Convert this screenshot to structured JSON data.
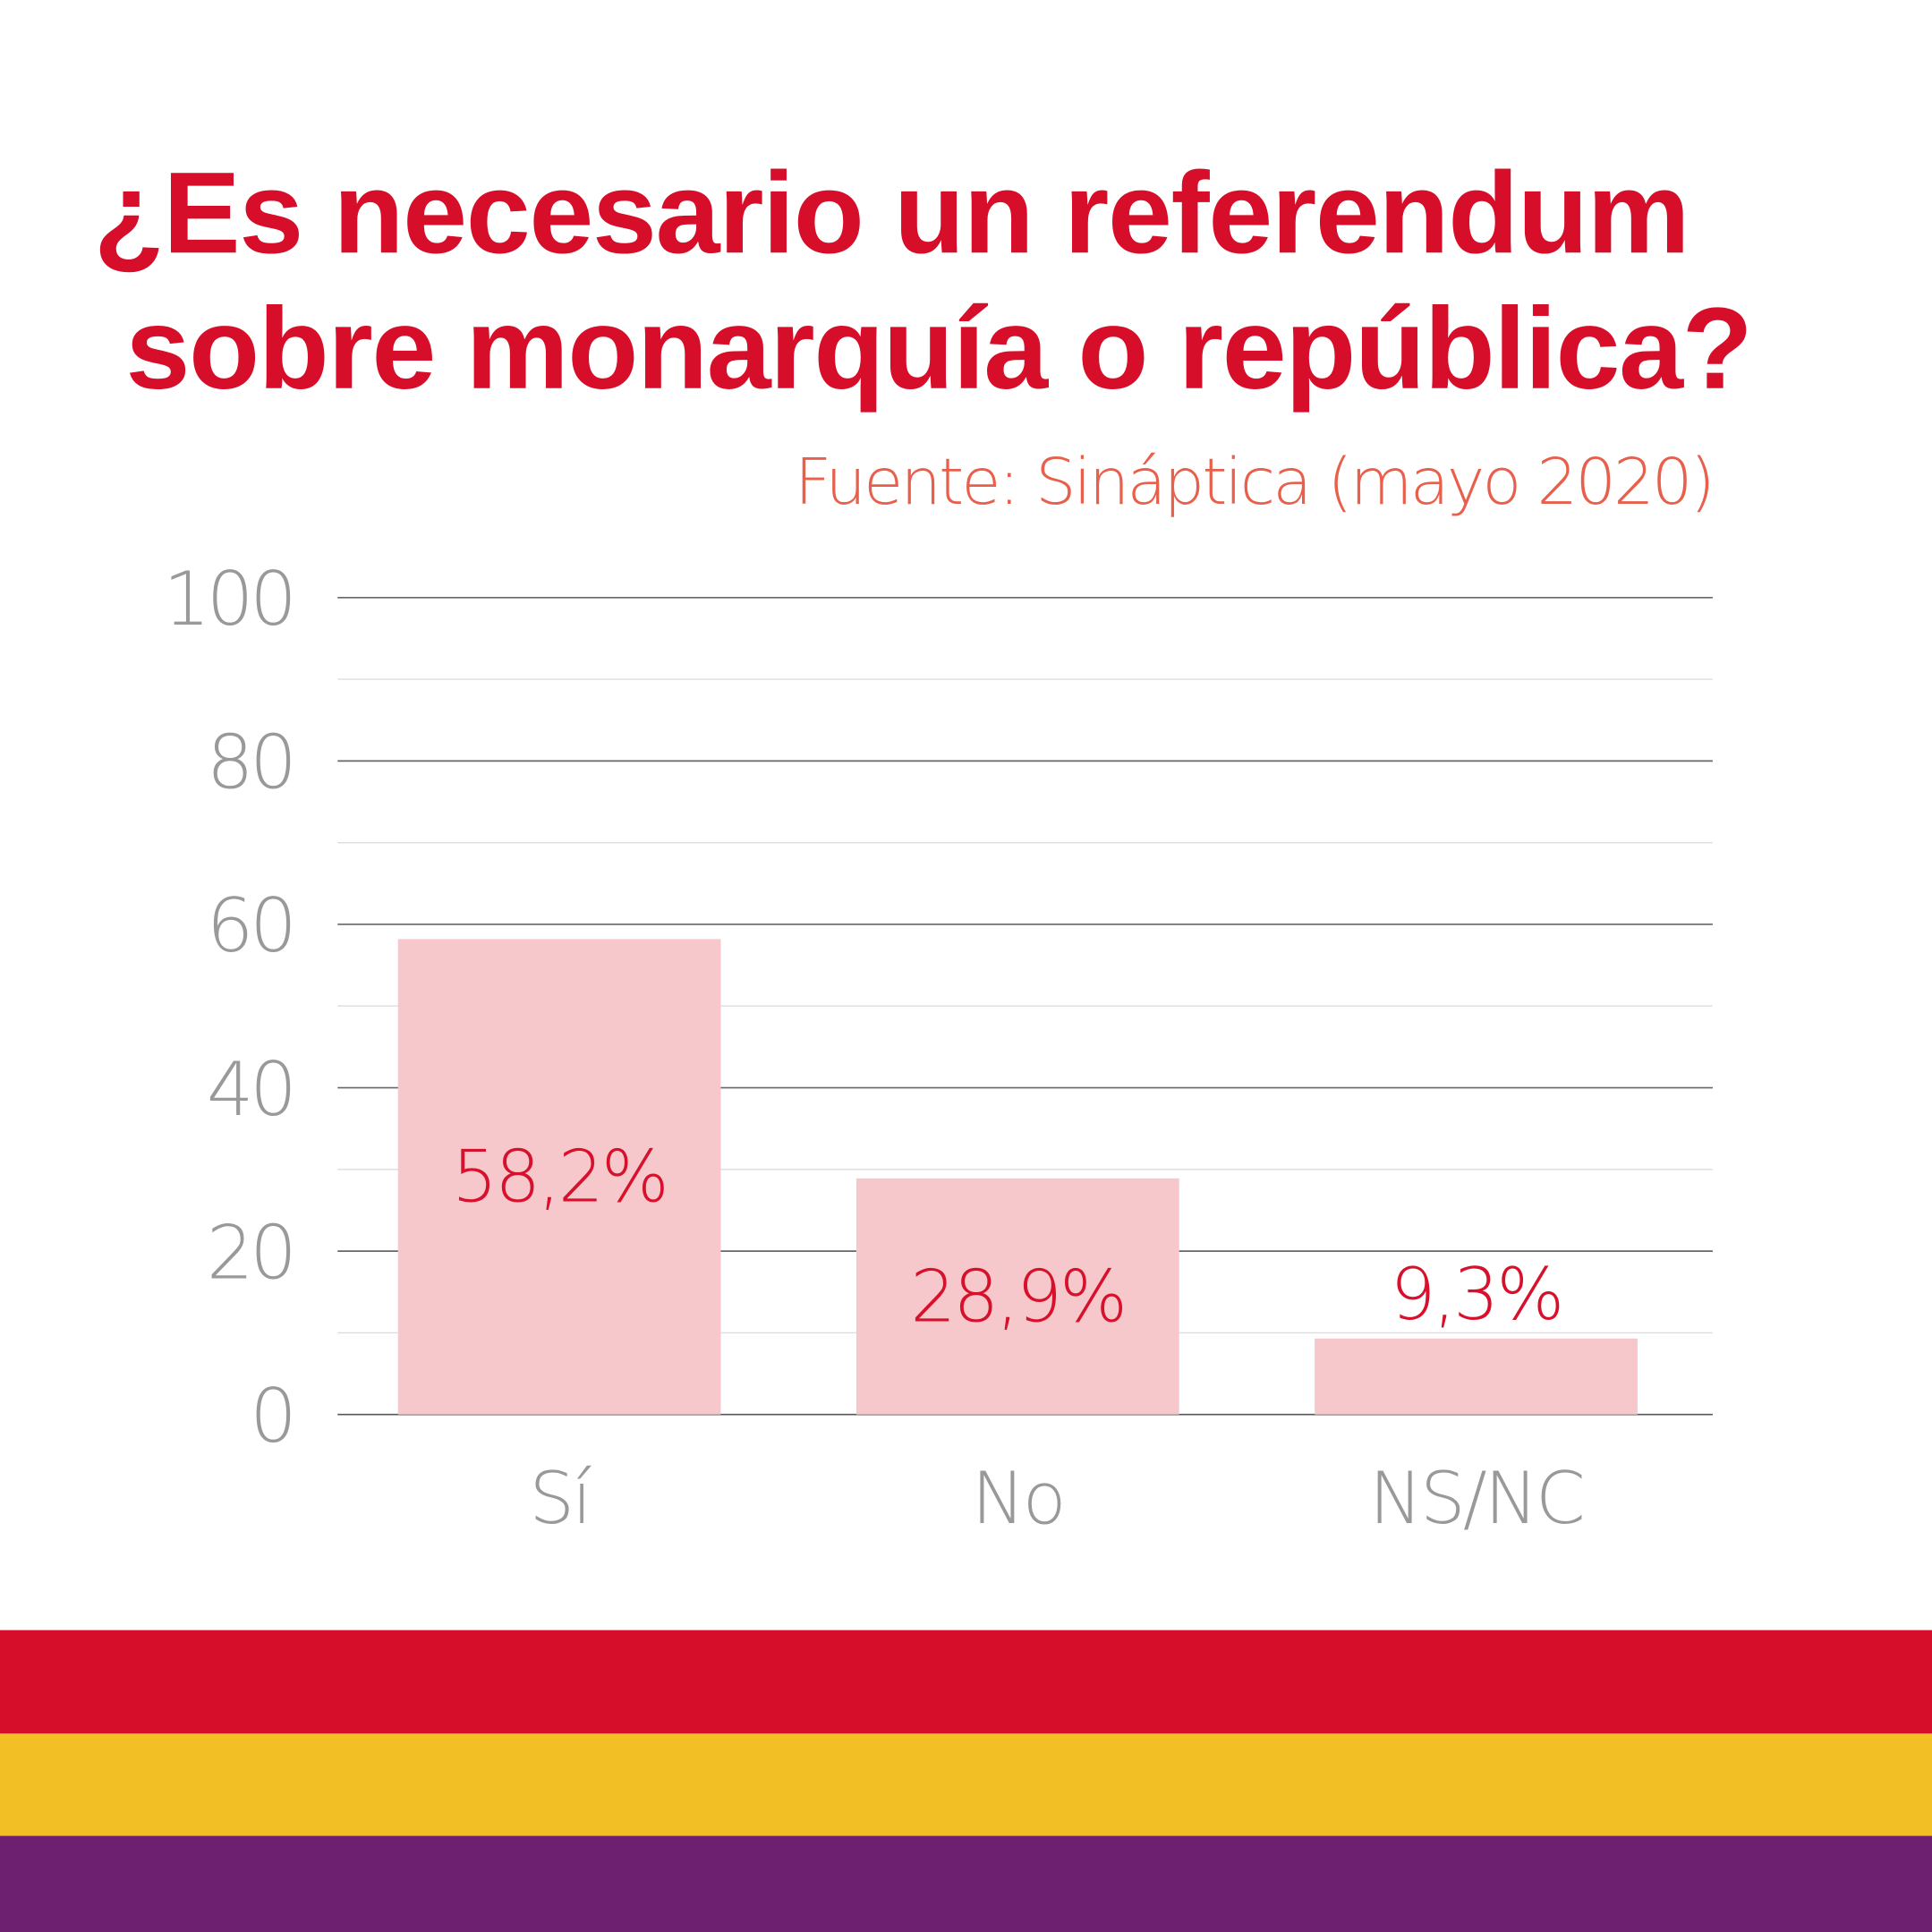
{
  "chart_data": {
    "type": "bar",
    "title": "¿Es necesario un referendum sobre monarquía o república?",
    "title_lines": [
      "¿Es necesario un referendum",
      "sobre monarquía o república?"
    ],
    "subtitle": "Fuente: Sináptica (mayo 2020)",
    "categories": [
      "Sí",
      "No",
      "NS/NC"
    ],
    "values": [
      58.2,
      28.9,
      9.3
    ],
    "value_labels": [
      "58,2%",
      "28,9%",
      "9,3%"
    ],
    "ylim": [
      0,
      100
    ],
    "yticks": [
      0,
      20,
      40,
      60,
      80,
      100
    ],
    "grid": true,
    "xlabel": "",
    "ylabel": "",
    "colors": {
      "bar": "#f6c8cb",
      "value_label": "#d7112c",
      "title": "#d70e2a",
      "source": "#e8604c",
      "axis_text": "#999999"
    }
  },
  "flag_stripes": [
    "#d70e2a",
    "#f2c024",
    "#6d2070"
  ]
}
